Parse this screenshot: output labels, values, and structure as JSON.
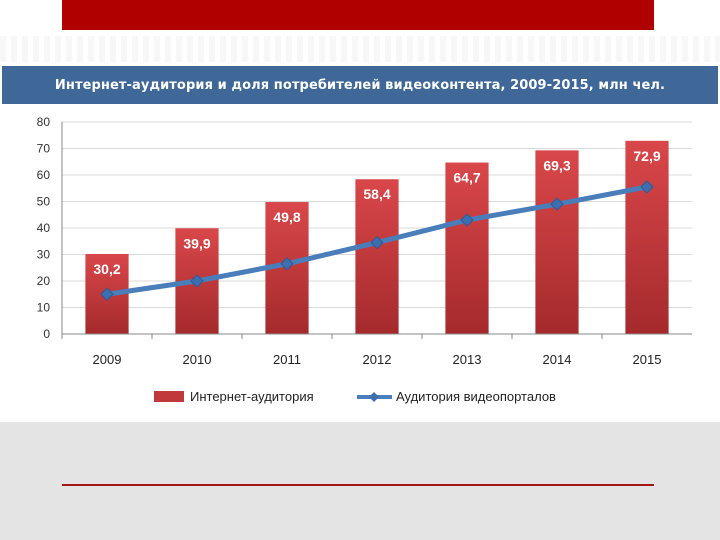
{
  "chart_data": {
    "type": "bar",
    "title": "Интернет-аудитория и доля потребителей видеоконтента, 2009-2015,  млн чел.",
    "categories": [
      "2009",
      "2010",
      "2011",
      "2012",
      "2013",
      "2014",
      "2015"
    ],
    "y_ticks": [
      "0",
      "10",
      "20",
      "30",
      "40",
      "50",
      "60",
      "70",
      "80"
    ],
    "ylim": [
      0,
      80
    ],
    "grid": true,
    "legend_position": "bottom",
    "series": [
      {
        "name": "Интернет-аудитория",
        "kind": "bar",
        "color": "#c0393b",
        "values": [
          30.2,
          39.9,
          49.8,
          58.4,
          64.7,
          69.3,
          72.9
        ],
        "labels": [
          "30,2",
          "39,9",
          "49,8",
          "58,4",
          "64,7",
          "69,3",
          "72,9"
        ]
      },
      {
        "name": "Аудитория видеопорталов",
        "kind": "line",
        "color": "#4a7ebb",
        "values": [
          15,
          20,
          26.5,
          34.5,
          43,
          49,
          55.5
        ]
      }
    ]
  }
}
